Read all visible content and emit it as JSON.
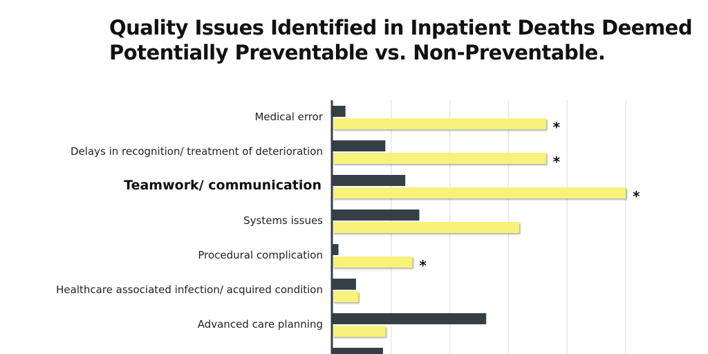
{
  "chart_data": {
    "type": "bar",
    "orientation": "horizontal",
    "title_lines": [
      "Quality Issues Identified in Inpatient Deaths Deemed",
      "Potentially Preventable vs. Non-Preventable."
    ],
    "categories": [
      "Medical error",
      "Delays in recognition/ treatment of deterioration",
      "Teamwork/ communication",
      "Systems issues",
      "Procedural complication",
      "Healthcare associated infection/ acquired condition",
      "Advanced care planning",
      ""
    ],
    "highlighted_category": "Teamwork/ communication",
    "series": [
      {
        "name": "Non-preventable",
        "color": "#353f46",
        "values": [
          1.1,
          4.5,
          6.2,
          7.4,
          0.5,
          2.0,
          13.1,
          4.3
        ]
      },
      {
        "name": "Potentially preventable",
        "color": "#f7f27a",
        "values": [
          18.2,
          18.2,
          25.0,
          15.9,
          6.8,
          2.2,
          4.5,
          null
        ]
      }
    ],
    "significance_marker": "*",
    "significant": [
      true,
      true,
      true,
      false,
      true,
      false,
      false,
      false
    ],
    "xlim": [
      0,
      25
    ],
    "grid": true,
    "xlabel": "",
    "ylabel": ""
  }
}
